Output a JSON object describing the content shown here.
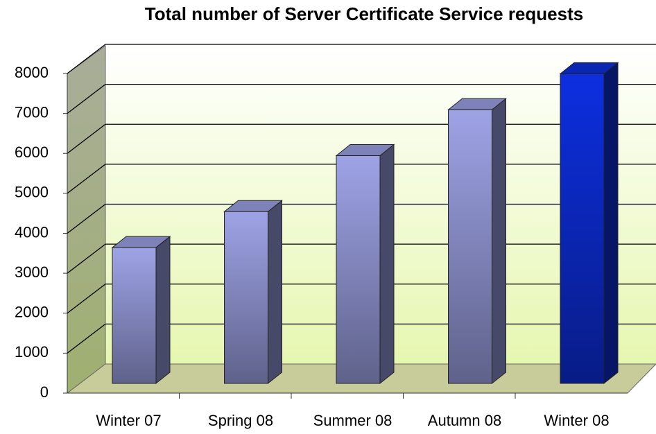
{
  "chart_data": {
    "type": "bar3d",
    "title": "Total number of Server Certificate Service requests",
    "categories": [
      "Winter 07",
      "Spring 08",
      "Summer 08",
      "Autumn 08",
      "Winter 08"
    ],
    "values": [
      3400,
      4300,
      5700,
      6850,
      7750
    ],
    "colors": [
      "#9ea3e6",
      "#9ea3e6",
      "#9ea3e6",
      "#9ea3e6",
      "#0d2fe0"
    ],
    "ylim": [
      0,
      8000
    ],
    "yticks": [
      0,
      1000,
      2000,
      3000,
      4000,
      5000,
      6000,
      7000,
      8000
    ],
    "grid": true
  }
}
